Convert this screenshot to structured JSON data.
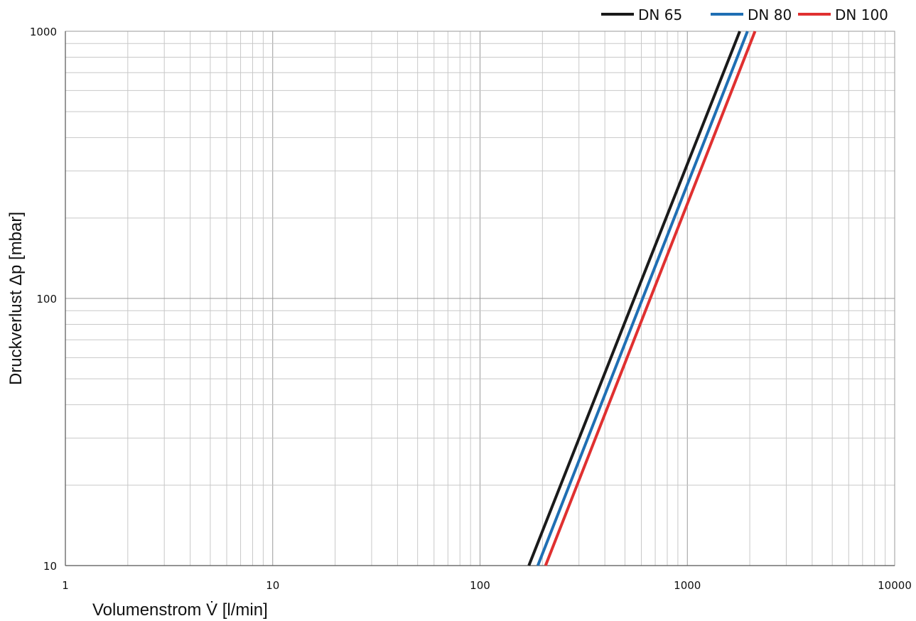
{
  "chart_data": {
    "type": "line",
    "xscale": "log",
    "yscale": "log",
    "xlim": [
      1,
      10000
    ],
    "ylim": [
      10,
      1000
    ],
    "xlabel": "Volumenstrom V̇ [l/min]",
    "ylabel": "Druckverlust Δp [mbar]",
    "xticks": [
      1,
      10,
      100,
      1000,
      10000
    ],
    "xtick_labels": [
      "1",
      "10",
      "100",
      "1000",
      "10000"
    ],
    "yticks": [
      10,
      100,
      1000
    ],
    "ytick_labels": [
      "10",
      "100",
      "1000"
    ],
    "grid": true,
    "legend_position": "top-right",
    "series": [
      {
        "name": "DN 65",
        "color": "#1a1a1a",
        "x": [
          172,
          1790
        ],
        "y": [
          10,
          1000
        ]
      },
      {
        "name": "DN 80",
        "color": "#1f6fb4",
        "x": [
          190,
          1950
        ],
        "y": [
          10,
          1000
        ]
      },
      {
        "name": "DN 100",
        "color": "#e03030",
        "x": [
          207,
          2120
        ],
        "y": [
          10,
          1000
        ]
      }
    ]
  }
}
